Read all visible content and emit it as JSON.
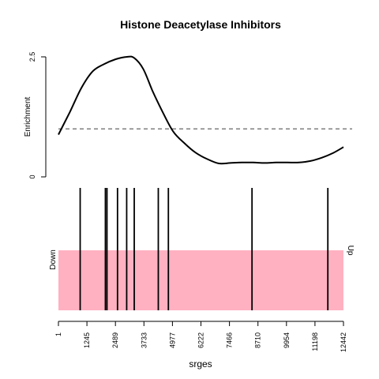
{
  "chart_data": [
    {
      "type": "line",
      "title": "Histone Deacetylase Inhibitors",
      "ylabel": "Enrichment",
      "ylim": [
        0,
        2.5
      ],
      "y_ticks": [
        "0",
        "2.5"
      ],
      "reference_line": 1.0,
      "series": [
        {
          "x": [
            1,
            500,
            1000,
            1500,
            2000,
            2500,
            3000,
            3300,
            3700,
            4100,
            4500,
            5000,
            5500,
            6000,
            6500,
            7000,
            7500,
            8000,
            8500,
            9000,
            9500,
            10000,
            10500,
            11000,
            11500,
            12000,
            12442
          ],
          "values": [
            0.88,
            1.35,
            1.85,
            2.2,
            2.35,
            2.45,
            2.5,
            2.48,
            2.25,
            1.8,
            1.4,
            0.95,
            0.7,
            0.5,
            0.37,
            0.28,
            0.29,
            0.3,
            0.3,
            0.29,
            0.3,
            0.3,
            0.3,
            0.33,
            0.4,
            0.5,
            0.62
          ]
        }
      ]
    },
    {
      "type": "barcode",
      "xlabel": "srges",
      "xlim": [
        1,
        12442
      ],
      "x_ticks": [
        "1",
        "1245",
        "2489",
        "3733",
        "4977",
        "6222",
        "7466",
        "8710",
        "9954",
        "11198",
        "12442"
      ],
      "left_label": "Down",
      "right_label": "Up",
      "band_color": "#ffb1c1",
      "positions": [
        950,
        2050,
        2120,
        2580,
        2980,
        3310,
        4360,
        4800,
        8450,
        11760
      ]
    }
  ]
}
